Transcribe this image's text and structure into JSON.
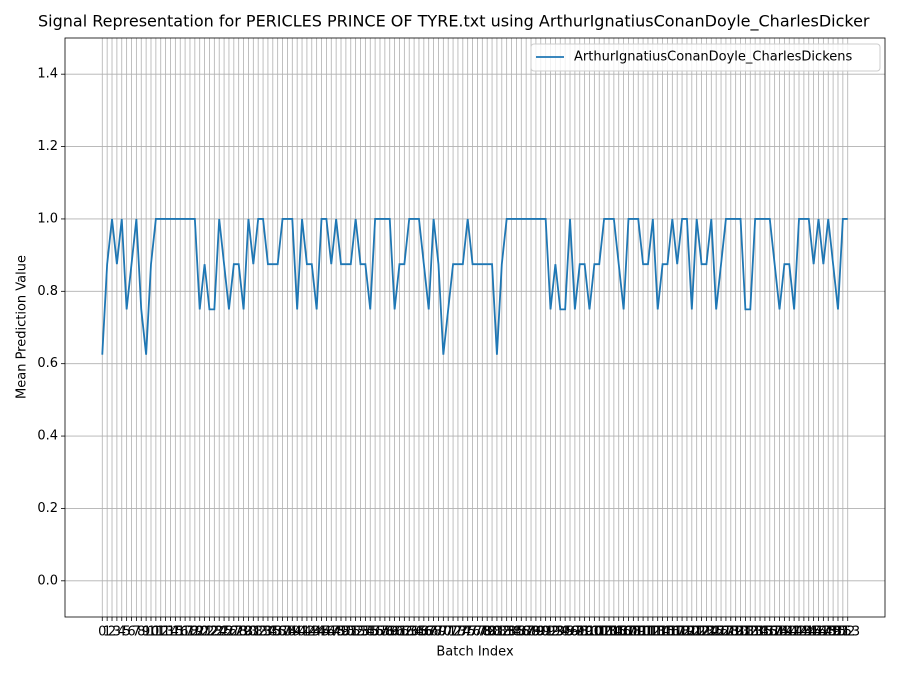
{
  "chart_data": {
    "type": "line",
    "title": "Signal Representation for PERICLES PRINCE OF TYRE.txt using ArthurIgnatiusConanDoyle_CharlesDicker",
    "xlabel": "Batch Index",
    "ylabel": "Mean Prediction Value",
    "x": [
      0,
      1,
      2,
      3,
      4,
      5,
      6,
      7,
      8,
      9,
      10,
      11,
      12,
      13,
      14,
      15,
      16,
      17,
      18,
      19,
      20,
      21,
      22,
      23,
      24,
      25,
      26,
      27,
      28,
      29,
      30,
      31,
      32,
      33,
      34,
      35,
      36,
      37,
      38,
      39,
      40,
      41,
      42,
      43,
      44,
      45,
      46,
      47,
      48,
      49,
      50,
      51,
      52,
      53,
      54,
      55,
      56,
      57,
      58,
      59,
      60,
      61,
      62,
      63,
      64,
      65,
      66,
      67,
      68,
      69,
      70,
      71,
      72,
      73,
      74,
      75,
      76,
      77,
      78,
      79,
      80,
      81,
      82,
      83,
      84,
      85,
      86,
      87,
      88,
      89,
      90,
      91,
      92,
      93,
      94,
      95,
      96,
      97,
      98,
      99,
      100,
      101,
      102,
      103,
      104,
      105,
      106,
      107,
      108,
      109,
      110,
      111,
      112,
      113,
      114,
      115,
      116,
      117,
      118,
      119,
      120,
      121,
      122,
      123,
      124,
      125,
      126,
      127,
      128,
      129,
      130,
      131,
      132,
      133,
      134,
      135,
      136,
      137,
      138,
      139,
      140,
      141,
      142,
      143,
      144,
      145,
      146,
      147,
      148,
      149,
      150,
      151,
      152,
      153
    ],
    "series": [
      {
        "name": "ArthurIgnatiusConanDoyle_CharlesDickens",
        "color": "#1f77b4",
        "values": [
          0.625,
          0.875,
          1,
          0.875,
          1,
          0.75,
          0.875,
          1,
          0.75,
          0.625,
          0.875,
          1,
          1,
          1,
          1,
          1,
          1,
          1,
          1,
          1,
          0.75,
          0.875,
          0.75,
          0.75,
          1,
          0.875,
          0.75,
          0.875,
          0.875,
          0.75,
          1,
          0.875,
          1,
          1,
          0.875,
          0.875,
          0.875,
          1,
          1,
          1,
          0.75,
          1,
          0.875,
          0.875,
          0.75,
          1,
          1,
          0.875,
          1,
          0.875,
          0.875,
          0.875,
          1,
          0.875,
          0.875,
          0.75,
          1,
          1,
          1,
          1,
          0.75,
          0.875,
          0.875,
          1,
          1,
          1,
          0.875,
          0.75,
          1,
          0.875,
          0.625,
          0.75,
          0.875,
          0.875,
          0.875,
          1,
          0.875,
          0.875,
          0.875,
          0.875,
          0.875,
          0.625,
          0.875,
          1,
          1,
          1,
          1,
          1,
          1,
          1,
          1,
          1,
          0.75,
          0.875,
          0.75,
          0.75,
          1,
          0.75,
          0.875,
          0.875,
          0.75,
          0.875,
          0.875,
          1,
          1,
          1,
          0.875,
          0.75,
          1,
          1,
          1,
          0.875,
          0.875,
          1,
          0.75,
          0.875,
          0.875,
          1,
          0.875,
          1,
          1,
          0.75,
          1,
          0.875,
          0.875,
          1,
          0.75,
          0.875,
          1,
          1,
          1,
          1,
          0.75,
          0.75,
          1,
          1,
          1,
          1,
          0.875,
          0.75,
          0.875,
          0.875,
          0.75,
          1,
          1,
          1,
          0.875,
          1,
          0.875,
          1,
          0.875,
          0.75,
          1,
          1
        ]
      }
    ],
    "xlim": [
      -7.65,
      160.65
    ],
    "xticks": [
      0,
      1,
      2,
      3,
      4,
      5,
      6,
      7,
      8,
      9,
      10,
      11,
      12,
      13,
      14,
      15,
      16,
      17,
      18,
      19,
      20,
      21,
      22,
      23,
      24,
      25,
      26,
      27,
      28,
      29,
      30,
      31,
      32,
      33,
      34,
      35,
      36,
      37,
      38,
      39,
      40,
      41,
      42,
      43,
      44,
      45,
      46,
      47,
      48,
      49,
      50,
      51,
      52,
      53,
      54,
      55,
      56,
      57,
      58,
      59,
      60,
      61,
      62,
      63,
      64,
      65,
      66,
      67,
      68,
      69,
      70,
      71,
      72,
      73,
      74,
      75,
      76,
      77,
      78,
      79,
      80,
      81,
      82,
      83,
      84,
      85,
      86,
      87,
      88,
      89,
      90,
      91,
      92,
      93,
      94,
      95,
      96,
      97,
      98,
      99,
      100,
      101,
      102,
      103,
      104,
      105,
      106,
      107,
      108,
      109,
      110,
      111,
      112,
      113,
      114,
      115,
      116,
      117,
      118,
      119,
      120,
      121,
      122,
      123,
      124,
      125,
      126,
      127,
      128,
      129,
      130,
      131,
      132,
      133,
      134,
      135,
      136,
      137,
      138,
      139,
      140,
      141,
      142,
      143,
      144,
      145,
      146,
      147,
      148,
      149,
      150,
      151,
      152,
      153
    ],
    "ylim": [
      -0.1,
      1.5
    ],
    "yticks": [
      {
        "value": 0,
        "label": "0.0"
      },
      {
        "value": 0.2,
        "label": "0.2"
      },
      {
        "value": 0.4,
        "label": "0.4"
      },
      {
        "value": 0.6,
        "label": "0.6"
      },
      {
        "value": 0.8,
        "label": "0.8"
      },
      {
        "value": 1,
        "label": "1.0"
      },
      {
        "value": 1.2,
        "label": "1.2"
      },
      {
        "value": 1.4,
        "label": "1.4"
      }
    ],
    "grid": true,
    "legend": "upper right"
  }
}
